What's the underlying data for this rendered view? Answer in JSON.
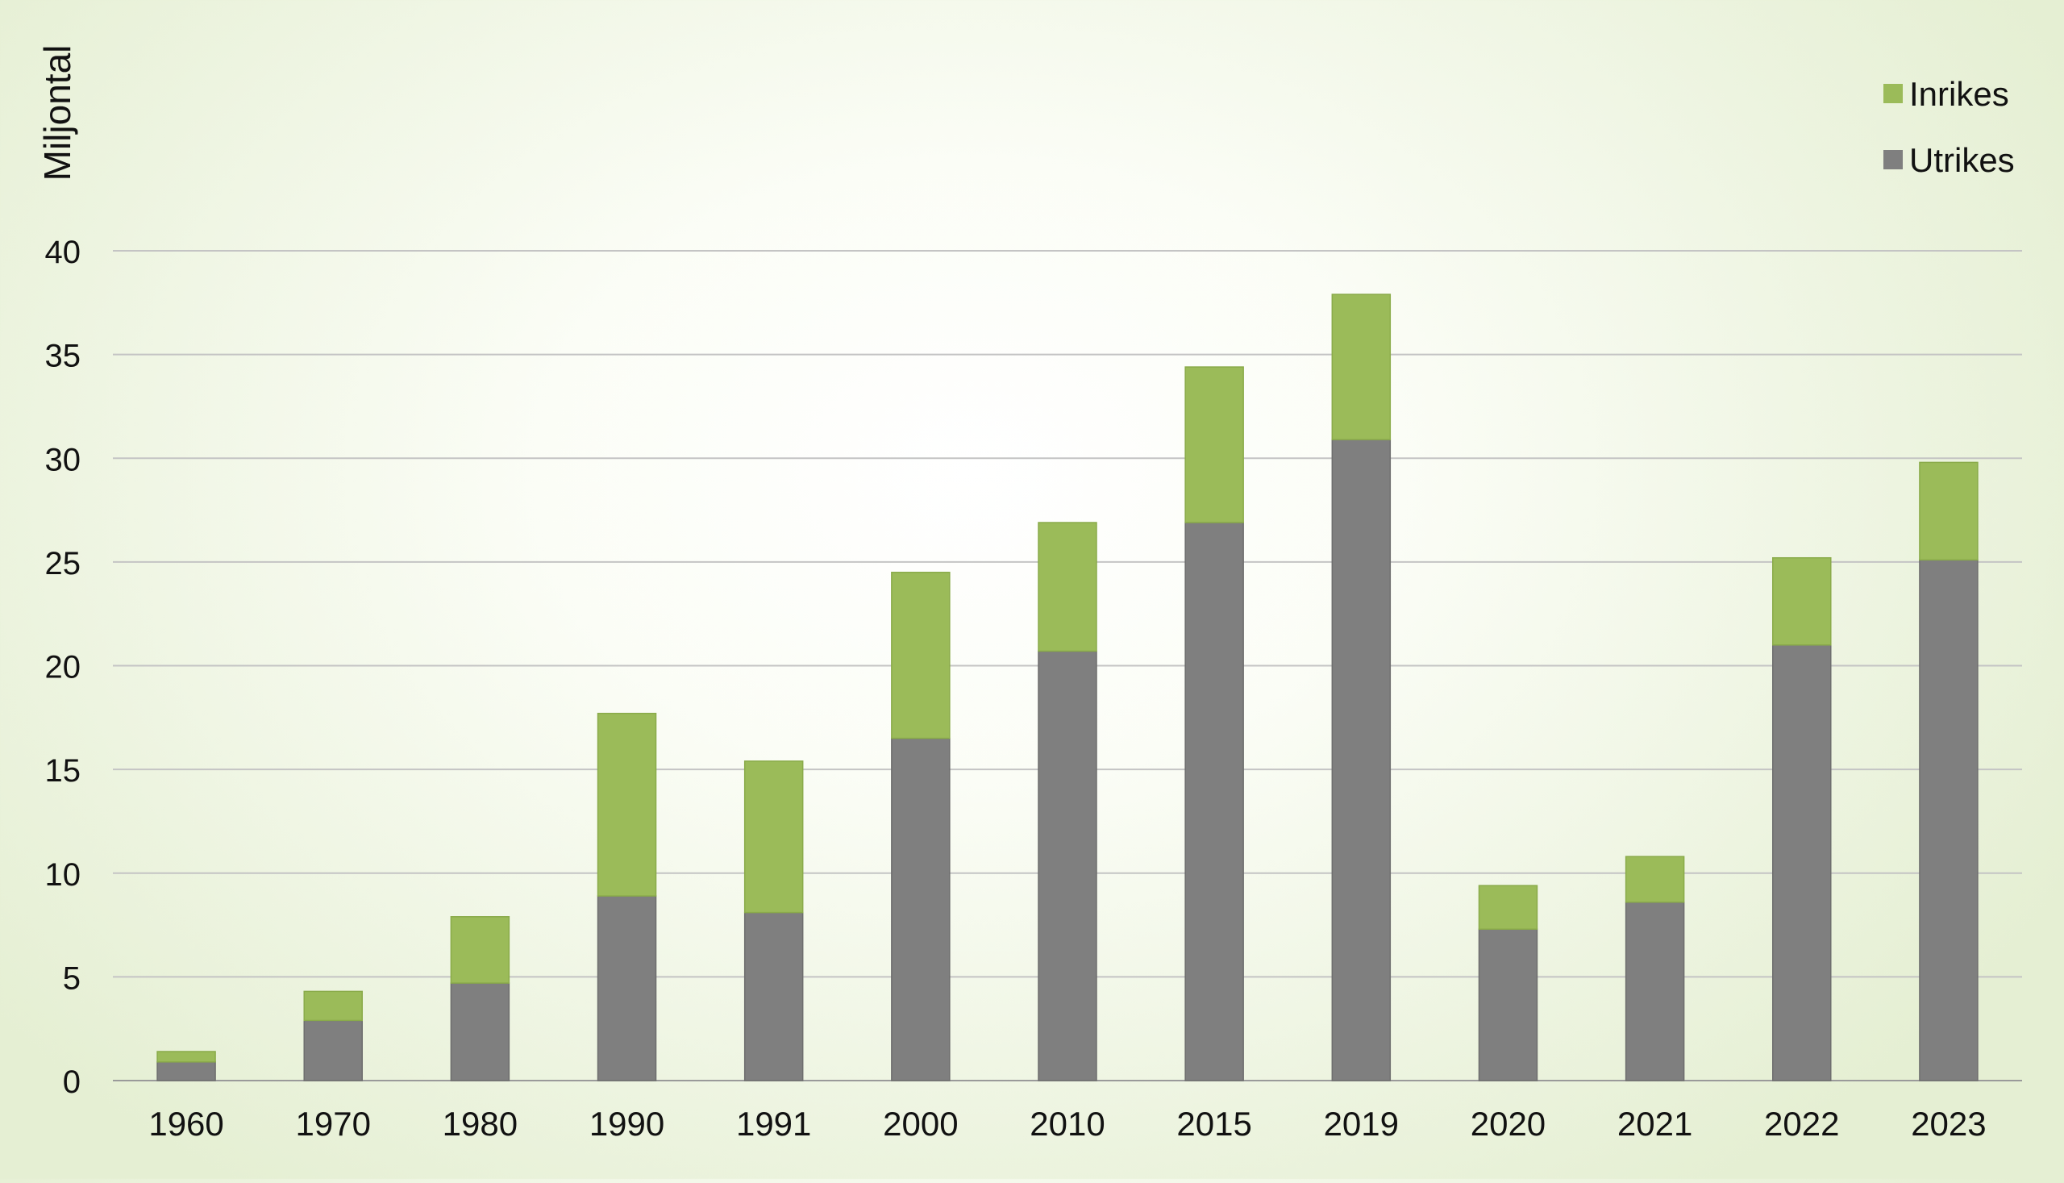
{
  "chart_data": {
    "type": "bar",
    "stacked": true,
    "title": "",
    "xlabel": "",
    "ylabel": "Miljontal",
    "categories": [
      "1960",
      "1970",
      "1980",
      "1990",
      "1991",
      "2000",
      "2010",
      "2015",
      "2019",
      "2020",
      "2021",
      "2022",
      "2023"
    ],
    "series": [
      {
        "name": "Utrikes",
        "color": "#7f7f7f",
        "values": [
          0.9,
          2.9,
          4.7,
          8.9,
          8.1,
          16.5,
          20.7,
          26.9,
          30.9,
          7.3,
          8.6,
          21.0,
          25.1
        ]
      },
      {
        "name": "Inrikes",
        "color": "#9bbb59",
        "values": [
          0.5,
          1.4,
          3.2,
          8.8,
          7.3,
          8.0,
          6.2,
          7.5,
          7.0,
          2.1,
          2.2,
          4.2,
          4.7
        ]
      }
    ],
    "ylim": [
      0,
      40
    ],
    "yticks": [
      0,
      5,
      10,
      15,
      20,
      25,
      30,
      35,
      40
    ],
    "grid": true,
    "legend_position": "top-right",
    "legend_order": [
      "Inrikes",
      "Utrikes"
    ]
  }
}
